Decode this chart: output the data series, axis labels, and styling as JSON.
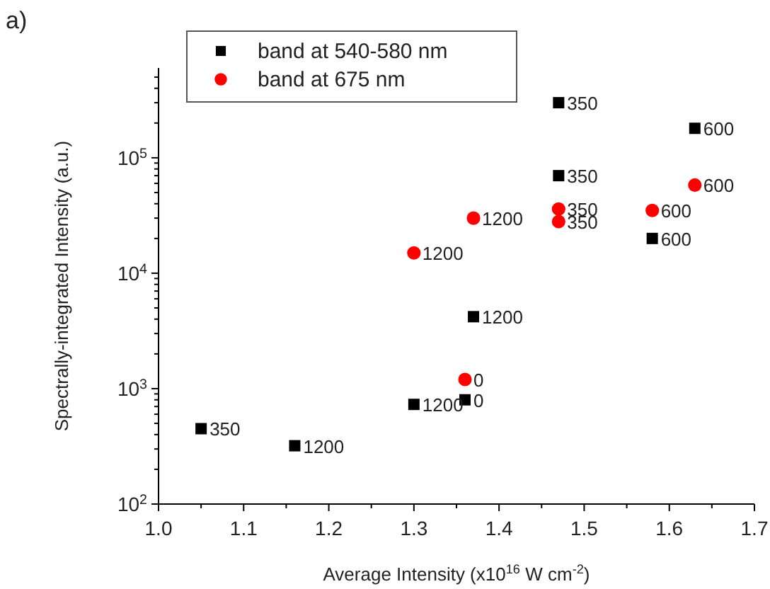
{
  "chart_data": {
    "type": "scatter",
    "xlabel": "Average Intensity (x10$^{16}$ W cm$^{-2}$)",
    "ylabel": "Spectrally-integrated Intensity (a.u.)",
    "log": "y",
    "legend": "top left",
    "grid": false,
    "xlim": [
      1.0,
      1.7
    ],
    "xticks": [
      {
        "value": 1.0,
        "label": "1.0"
      },
      {
        "value": 1.05,
        "label": null
      },
      {
        "value": 1.1,
        "label": "1.1"
      },
      {
        "value": 1.15,
        "label": null
      },
      {
        "value": 1.2,
        "label": "1.2"
      },
      {
        "value": 1.25,
        "label": null
      },
      {
        "value": 1.3,
        "label": "1.3"
      },
      {
        "value": 1.35,
        "label": null
      },
      {
        "value": 1.4,
        "label": "1.4"
      },
      {
        "value": 1.45,
        "label": null
      },
      {
        "value": 1.5,
        "label": "1.5"
      },
      {
        "value": 1.55,
        "label": null
      },
      {
        "value": 1.6,
        "label": "1.6"
      },
      {
        "value": 1.65,
        "label": null
      },
      {
        "value": 1.7,
        "label": "1.7"
      }
    ],
    "ylim": [
      100,
      600000
    ],
    "yticks": [
      {
        "value": 100,
        "label": "10$^{2}$"
      },
      {
        "value": 1000,
        "label": "10$^{3}$"
      },
      {
        "value": 10000,
        "label": "10$^{4}$"
      },
      {
        "value": 100000,
        "label": "10$^{5}$"
      },
      {
        "value": 200,
        "label": null
      },
      {
        "value": 300,
        "label": null
      },
      {
        "value": 400,
        "label": null
      },
      {
        "value": 500,
        "label": null
      },
      {
        "value": 600,
        "label": null
      },
      {
        "value": 700,
        "label": null
      },
      {
        "value": 800,
        "label": null
      },
      {
        "value": 900,
        "label": null
      },
      {
        "value": 2000,
        "label": null
      },
      {
        "value": 3000,
        "label": null
      },
      {
        "value": 4000,
        "label": null
      },
      {
        "value": 5000,
        "label": null
      },
      {
        "value": 6000,
        "label": null
      },
      {
        "value": 7000,
        "label": null
      },
      {
        "value": 8000,
        "label": null
      },
      {
        "value": 9000,
        "label": null
      },
      {
        "value": 20000,
        "label": null
      },
      {
        "value": 30000,
        "label": null
      },
      {
        "value": 40000,
        "label": null
      },
      {
        "value": 50000,
        "label": null
      },
      {
        "value": 60000,
        "label": null
      },
      {
        "value": 70000,
        "label": null
      },
      {
        "value": 80000,
        "label": null
      },
      {
        "value": 90000,
        "label": null
      },
      {
        "value": 200000,
        "label": null
      },
      {
        "value": 300000,
        "label": null
      },
      {
        "value": 400000,
        "label": null
      },
      {
        "value": 500000,
        "label": null
      }
    ],
    "series": [
      {
        "name": "band at 540-580 nm",
        "color": "#000000",
        "marker": "square",
        "x": [
          1.05,
          1.16,
          1.3,
          1.36,
          1.37,
          1.47,
          1.47,
          1.58,
          1.63
        ],
        "values": [
          450,
          320,
          730,
          800,
          4200,
          300000,
          70000,
          20000,
          180000
        ]
      },
      {
        "name": "band at 675 nm",
        "color": "#ff0000",
        "marker": "circle",
        "x": [
          1.3,
          1.37,
          1.36,
          1.47,
          1.47,
          1.58,
          1.63
        ],
        "values": [
          15000,
          30000,
          1200,
          36000,
          28000,
          35000,
          58000
        ]
      }
    ],
    "annotations": [
      "a)",
      {
        "text": "350",
        "x": 1.05,
        "y": 450
      },
      {
        "text": "1200",
        "x": 1.16,
        "y": 320
      },
      {
        "text": "1200",
        "x": 1.3,
        "y": 730
      },
      {
        "text": "0",
        "x": 1.36,
        "y": 800
      },
      {
        "text": "1200",
        "x": 1.37,
        "y": 4200
      },
      {
        "text": "350",
        "x": 1.47,
        "y": 300000
      },
      {
        "text": "350",
        "x": 1.47,
        "y": 70000
      },
      {
        "text": "600",
        "x": 1.58,
        "y": 20000
      },
      {
        "text": "600",
        "x": 1.63,
        "y": 180000
      },
      {
        "text": "1200",
        "x": 1.3,
        "y": 15000
      },
      {
        "text": "1200",
        "x": 1.37,
        "y": 30000
      },
      {
        "text": "0",
        "x": 1.36,
        "y": 1200
      },
      {
        "text": "350",
        "x": 1.47,
        "y": 36000
      },
      {
        "text": "350",
        "x": 1.47,
        "y": 28000
      },
      {
        "text": "600",
        "x": 1.58,
        "y": 35000
      },
      {
        "text": "600",
        "x": 1.63,
        "y": 58000
      }
    ]
  }
}
